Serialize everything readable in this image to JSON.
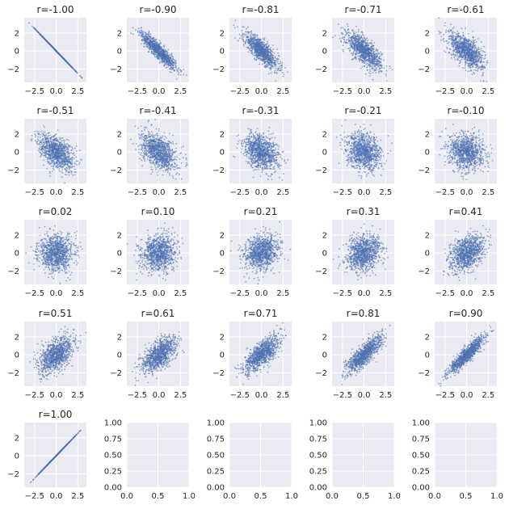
{
  "chart_data": {
    "type": "scatter",
    "layout": "5x5 grid",
    "point_color": "#4c72b0",
    "axes_background": "#eaeaf2",
    "grid": true,
    "panels_filled": [
      {
        "title": "r=-1.00",
        "r": -1.0
      },
      {
        "title": "r=-0.90",
        "r": -0.9
      },
      {
        "title": "r=-0.81",
        "r": -0.81
      },
      {
        "title": "r=-0.71",
        "r": -0.71
      },
      {
        "title": "r=-0.61",
        "r": -0.61
      },
      {
        "title": "r=-0.51",
        "r": -0.51
      },
      {
        "title": "r=-0.41",
        "r": -0.41
      },
      {
        "title": "r=-0.31",
        "r": -0.31
      },
      {
        "title": "r=-0.21",
        "r": -0.21
      },
      {
        "title": "r=-0.10",
        "r": -0.1
      },
      {
        "title": "r=0.02",
        "r": 0.02
      },
      {
        "title": "r=0.10",
        "r": 0.1
      },
      {
        "title": "r=0.21",
        "r": 0.21
      },
      {
        "title": "r=0.31",
        "r": 0.31
      },
      {
        "title": "r=0.41",
        "r": 0.41
      },
      {
        "title": "r=0.51",
        "r": 0.51
      },
      {
        "title": "r=0.61",
        "r": 0.61
      },
      {
        "title": "r=0.71",
        "r": 0.71
      },
      {
        "title": "r=0.81",
        "r": 0.81
      },
      {
        "title": "r=0.90",
        "r": 0.9
      },
      {
        "title": "r=1.00",
        "r": 1.0
      }
    ],
    "points_per_panel": 1000,
    "xlim": [
      -3.7,
      3.5
    ],
    "ylim": [
      -3.5,
      3.7
    ],
    "xticks": [
      {
        "v": -2.5,
        "label": "−2.5"
      },
      {
        "v": 0,
        "label": "0.0"
      },
      {
        "v": 2.5,
        "label": "2.5"
      }
    ],
    "yticks": [
      {
        "v": -2,
        "label": "−2"
      },
      {
        "v": 0,
        "label": "0"
      },
      {
        "v": 2,
        "label": "2"
      }
    ],
    "empty_panels": 4,
    "empty_xlim": [
      0,
      1
    ],
    "empty_ylim": [
      0,
      1
    ],
    "empty_xticks": [
      {
        "v": 0,
        "label": "0.0"
      },
      {
        "v": 0.5,
        "label": "0.5"
      },
      {
        "v": 1,
        "label": "1.0"
      }
    ],
    "empty_yticks": [
      {
        "v": 0,
        "label": "0.00"
      },
      {
        "v": 0.25,
        "label": "0.25"
      },
      {
        "v": 0.5,
        "label": "0.50"
      },
      {
        "v": 0.75,
        "label": "0.75"
      },
      {
        "v": 1,
        "label": "1.00"
      }
    ]
  }
}
